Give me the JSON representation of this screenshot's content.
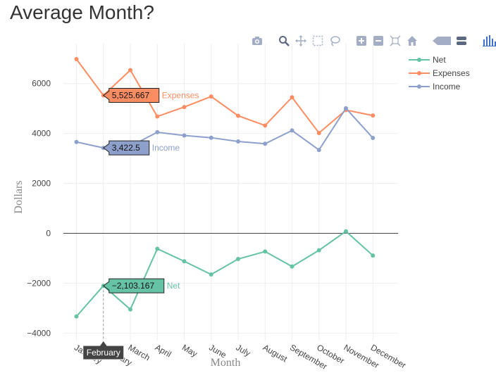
{
  "page": {
    "title": "Average Month?"
  },
  "modebar": {
    "buttons": [
      {
        "name": "camera-icon"
      },
      {
        "name": "zoom-icon"
      },
      {
        "name": "pan-icon"
      },
      {
        "name": "box-select-icon"
      },
      {
        "name": "lasso-select-icon"
      },
      {
        "name": "zoom-in-icon"
      },
      {
        "name": "zoom-out-icon"
      },
      {
        "name": "autoscale-icon"
      },
      {
        "name": "reset-axes-icon"
      },
      {
        "name": "spike-lines-icon"
      },
      {
        "name": "hover-closest-icon"
      },
      {
        "name": "hover-compare-icon"
      },
      {
        "name": "plotly-logo-icon"
      }
    ]
  },
  "chart_data": {
    "type": "line",
    "title": "Average Month?",
    "xlabel": "Month",
    "ylabel": "Dollars",
    "categories": [
      "January",
      "February",
      "March",
      "April",
      "May",
      "June",
      "July",
      "August",
      "September",
      "October",
      "November",
      "December"
    ],
    "ylim": [
      -4300,
      7600
    ],
    "yticks": [
      -4000,
      -2000,
      0,
      2000,
      4000,
      6000
    ],
    "ytick_labels": [
      "−4000",
      "−2000",
      "0",
      "2000",
      "4000",
      "6000"
    ],
    "grid": true,
    "legend": "top-right",
    "series": [
      {
        "name": "Net",
        "color": "#66c2a5",
        "values": [
          -3330,
          -2103.167,
          -3050,
          -620,
          -1120,
          -1650,
          -1030,
          -730,
          -1330,
          -680,
          80,
          -890
        ]
      },
      {
        "name": "Expenses",
        "color": "#fc8d62",
        "values": [
          6980,
          5525.667,
          6540,
          4680,
          5060,
          5480,
          4710,
          4320,
          5450,
          4020,
          4940,
          4720
        ]
      },
      {
        "name": "Income",
        "color": "#8da0cb",
        "values": [
          3660,
          3422.5,
          3490,
          4050,
          3920,
          3830,
          3680,
          3590,
          4120,
          3340,
          5010,
          3820
        ]
      }
    ],
    "hover": {
      "category_label": "February",
      "labels": [
        {
          "series": "Expenses",
          "value_text": "5,525.667",
          "name": "Expenses"
        },
        {
          "series": "Income",
          "value_text": "3,422.5",
          "name": "Income"
        },
        {
          "series": "Net",
          "value_text": "−2,103.167",
          "name": "Net"
        }
      ]
    }
  }
}
